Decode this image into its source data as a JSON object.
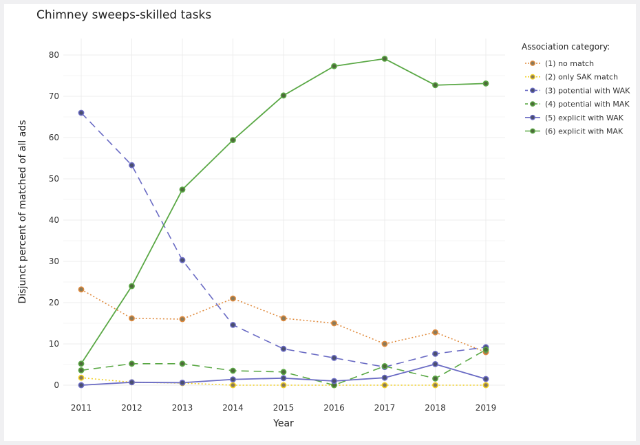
{
  "chart_data": {
    "type": "line",
    "title": "Chimney sweeps-skilled tasks",
    "xlabel": "Year",
    "ylabel": "Disjunct percent of matched of all ads",
    "x": [
      2011,
      2012,
      2013,
      2014,
      2015,
      2016,
      2017,
      2018,
      2019
    ],
    "ylim": [
      -4,
      84
    ],
    "yticks": [
      0,
      10,
      20,
      30,
      40,
      50,
      60,
      70,
      80
    ],
    "grid": true,
    "legend": {
      "title": "Association category:",
      "placement": "right"
    },
    "series": [
      {
        "name": "(1) no match",
        "values": [
          23.2,
          16.2,
          16.0,
          21.0,
          16.2,
          15.0,
          10.0,
          12.8,
          8.0
        ],
        "color": "#e08a3c",
        "dash": "dotted",
        "marker_fill": "#8a7a5a"
      },
      {
        "name": "(2) only SAK match",
        "values": [
          1.8,
          0.7,
          0.5,
          0.0,
          0.0,
          0.0,
          0.0,
          0.0,
          0.0
        ],
        "color": "#f2d024",
        "dash": "dotted",
        "marker_fill": "#8a7a5a"
      },
      {
        "name": "(3) potential with WAK",
        "values": [
          66.0,
          53.3,
          30.3,
          14.6,
          8.8,
          6.6,
          4.4,
          7.6,
          9.2
        ],
        "color": "#6a6bc4",
        "dash": "dashed",
        "marker_fill": "#4a4f6e"
      },
      {
        "name": "(4) potential with MAK",
        "values": [
          3.6,
          5.2,
          5.2,
          3.5,
          3.2,
          0.0,
          4.6,
          1.6,
          8.6
        ],
        "color": "#5aa845",
        "dash": "dashed",
        "marker_fill": "#4d6a3a"
      },
      {
        "name": "(5) explicit with WAK",
        "values": [
          0.0,
          0.7,
          0.6,
          1.4,
          1.7,
          1.0,
          1.8,
          5.1,
          1.5
        ],
        "color": "#6a6bc4",
        "dash": "solid",
        "marker_fill": "#4a4f6e"
      },
      {
        "name": "(6) explicit with MAK",
        "values": [
          5.2,
          24.0,
          47.4,
          59.4,
          70.2,
          77.3,
          79.1,
          72.7,
          73.1
        ],
        "color": "#5aa845",
        "dash": "solid",
        "marker_fill": "#4d6a3a"
      }
    ]
  }
}
